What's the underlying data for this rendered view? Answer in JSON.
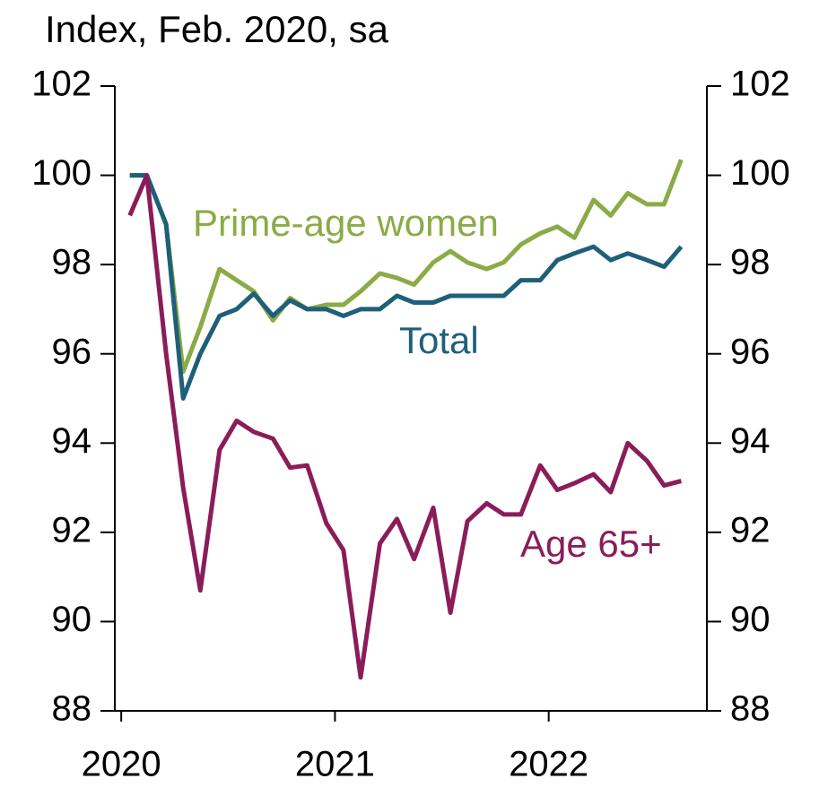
{
  "chart_data": {
    "type": "line",
    "title": "Index, Feb. 2020, sa",
    "x": [
      2020.04,
      2020.12,
      2020.21,
      2020.29,
      2020.37,
      2020.46,
      2020.54,
      2020.62,
      2020.71,
      2020.79,
      2020.87,
      2020.96,
      2021.04,
      2021.12,
      2021.21,
      2021.29,
      2021.37,
      2021.46,
      2021.54,
      2021.62,
      2021.71,
      2021.79,
      2021.87,
      2021.96,
      2022.04,
      2022.12,
      2022.21,
      2022.29,
      2022.37,
      2022.46,
      2022.54,
      2022.62
    ],
    "series": [
      {
        "name": "Prime-age women",
        "color": "#8aab46",
        "values": [
          100,
          100,
          98.9,
          95.6,
          96.6,
          97.9,
          97.65,
          97.4,
          96.75,
          97.25,
          97.0,
          97.1,
          97.1,
          97.4,
          97.8,
          97.7,
          97.55,
          98.05,
          98.3,
          98.05,
          97.9,
          98.05,
          98.45,
          98.7,
          98.85,
          98.6,
          99.45,
          99.1,
          99.6,
          99.35,
          99.35,
          100.35
        ]
      },
      {
        "name": "Total",
        "color": "#1f5f7a",
        "values": [
          100,
          100,
          98.9,
          95.0,
          96.0,
          96.85,
          97.0,
          97.35,
          96.85,
          97.2,
          97.0,
          97.0,
          96.85,
          97.0,
          97.0,
          97.3,
          97.15,
          97.15,
          97.3,
          97.3,
          97.3,
          97.3,
          97.65,
          97.65,
          98.1,
          98.25,
          98.4,
          98.1,
          98.25,
          98.1,
          97.95,
          98.4
        ]
      },
      {
        "name": "Age 65+",
        "color": "#8b1c5a",
        "values": [
          99.1,
          100,
          96.0,
          93.0,
          90.7,
          93.85,
          94.5,
          94.25,
          94.1,
          93.45,
          93.5,
          92.2,
          91.6,
          88.75,
          91.75,
          92.3,
          91.4,
          92.55,
          90.2,
          92.25,
          92.65,
          92.4,
          92.4,
          93.5,
          92.95,
          93.1,
          93.3,
          92.9,
          94.0,
          93.6,
          93.05,
          93.15
        ]
      }
    ],
    "xlim": [
      2019.97,
      2022.74
    ],
    "xticks": [
      2020,
      2021,
      2022
    ],
    "ylim": [
      88,
      102
    ],
    "yticks": [
      88,
      90,
      92,
      94,
      96,
      98,
      100,
      102
    ],
    "y2lim": [
      88,
      102
    ],
    "y2ticks": [
      88,
      90,
      92,
      94,
      96,
      98,
      100,
      102
    ]
  }
}
